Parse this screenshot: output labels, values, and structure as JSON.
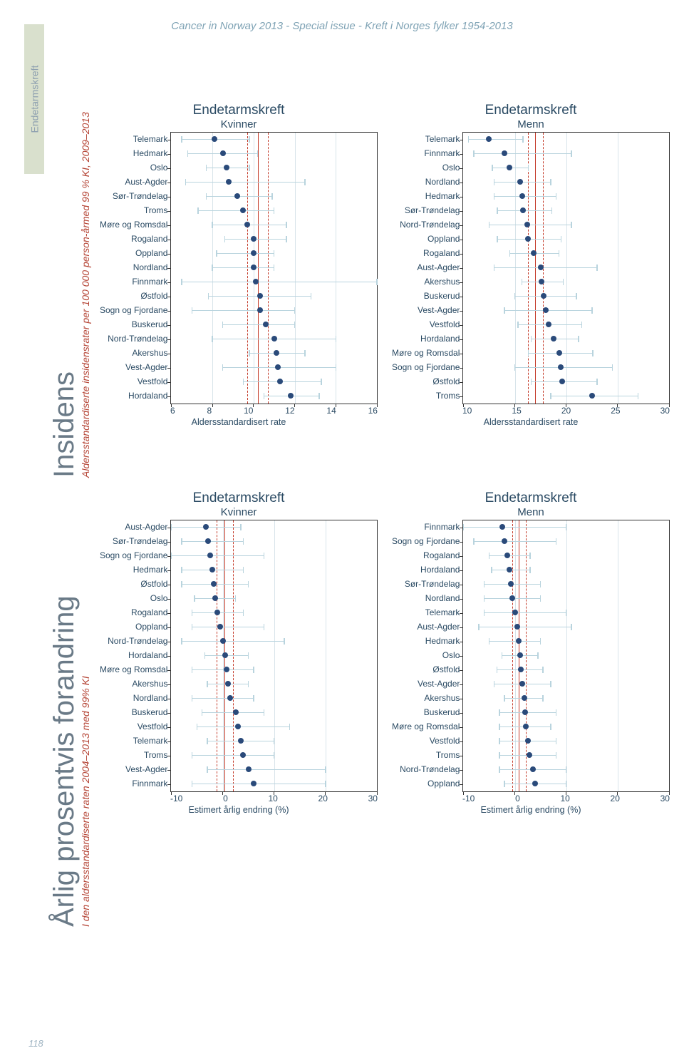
{
  "header": "Cancer in Norway 2013 - Special issue - Kreft i Norges fylker 1954-2013",
  "page_number": "118",
  "side_tag": "Endetarmskreft",
  "rot_top": {
    "big": "Insidens",
    "small": "Aldersstandardiserte insidensrater per 100 000 person-årmed 99 % KI, 2009–2013"
  },
  "rot_bottom": {
    "big": "Årlig prosentvis forandring",
    "small": "I den aldersstandardiserte raten  2004–2013 med 99% KI"
  },
  "colors": {
    "dot": "#2a4a7a",
    "ci": "#b9d4de",
    "ref": "#c43b2a",
    "grid": "#d8e4ea"
  },
  "charts": [
    {
      "title": "Endetarmskreft",
      "subtitle": "Kvinner",
      "xlabel": "Aldersstandardisert rate",
      "xmin": 6,
      "xmax": 16,
      "xticks": [
        6,
        8,
        10,
        12,
        14,
        16
      ],
      "ref_solid": 10.2,
      "ref_dash": [
        9.7,
        10.7
      ],
      "gridlines": [
        8,
        10,
        12,
        14
      ],
      "rows": [
        {
          "label": "Telemark",
          "est": 8.1,
          "lo": 6.5,
          "hi": 9.8
        },
        {
          "label": "Hedmark",
          "est": 8.5,
          "lo": 6.8,
          "hi": 10.2
        },
        {
          "label": "Oslo",
          "est": 8.7,
          "lo": 7.7,
          "hi": 9.8
        },
        {
          "label": "Aust-Agder",
          "est": 8.8,
          "lo": 6.7,
          "hi": 12.5
        },
        {
          "label": "Sør-Trøndelag",
          "est": 9.2,
          "lo": 7.7,
          "hi": 10.9
        },
        {
          "label": "Troms",
          "est": 9.5,
          "lo": 7.3,
          "hi": 11.0
        },
        {
          "label": "Møre og Romsdal",
          "est": 9.7,
          "lo": 8.0,
          "hi": 11.6
        },
        {
          "label": "Rogaland",
          "est": 10.0,
          "lo": 8.6,
          "hi": 11.6
        },
        {
          "label": "Oppland",
          "est": 10.0,
          "lo": 8.2,
          "hi": 11.0
        },
        {
          "label": "Nordland",
          "est": 10.0,
          "lo": 8.0,
          "hi": 11.0
        },
        {
          "label": "Finnmark",
          "est": 10.1,
          "lo": 6.5,
          "hi": 16.0
        },
        {
          "label": "Østfold",
          "est": 10.3,
          "lo": 7.8,
          "hi": 12.8
        },
        {
          "label": "Sogn og Fjordane",
          "est": 10.3,
          "lo": 7.0,
          "hi": 12.0
        },
        {
          "label": "Buskerud",
          "est": 10.6,
          "lo": 8.5,
          "hi": 12.0
        },
        {
          "label": "Nord-Trøndelag",
          "est": 11.0,
          "lo": 8.0,
          "hi": 14.0
        },
        {
          "label": "Akershus",
          "est": 11.1,
          "lo": 9.8,
          "hi": 12.5
        },
        {
          "label": "Vest-Agder",
          "est": 11.2,
          "lo": 8.5,
          "hi": 14.0
        },
        {
          "label": "Vestfold",
          "est": 11.3,
          "lo": 9.5,
          "hi": 13.3
        },
        {
          "label": "Hordaland",
          "est": 11.8,
          "lo": 10.5,
          "hi": 13.2
        }
      ]
    },
    {
      "title": "Endetarmskreft",
      "subtitle": "Menn",
      "xlabel": "Aldersstandardisert rate",
      "xmin": 10,
      "xmax": 30,
      "xticks": [
        10,
        15,
        20,
        25,
        30
      ],
      "ref_solid": 17.0,
      "ref_dash": [
        16.3,
        17.7
      ],
      "gridlines": [
        15,
        20,
        25
      ],
      "rows": [
        {
          "label": "Telemark",
          "est": 12.5,
          "lo": 10.5,
          "hi": 15.8
        },
        {
          "label": "Finnmark",
          "est": 14.0,
          "lo": 11.0,
          "hi": 20.5
        },
        {
          "label": "Oslo",
          "est": 14.5,
          "lo": 12.8,
          "hi": 16.3
        },
        {
          "label": "Nordland",
          "est": 15.5,
          "lo": 13.0,
          "hi": 18.5
        },
        {
          "label": "Hedmark",
          "est": 15.7,
          "lo": 13.0,
          "hi": 19.0
        },
        {
          "label": "Sør-Trøndelag",
          "est": 15.8,
          "lo": 13.3,
          "hi": 18.6
        },
        {
          "label": "Nord-Trøndelag",
          "est": 16.2,
          "lo": 12.5,
          "hi": 20.5
        },
        {
          "label": "Oppland",
          "est": 16.3,
          "lo": 13.3,
          "hi": 19.5
        },
        {
          "label": "Rogaland",
          "est": 16.8,
          "lo": 14.5,
          "hi": 19.3
        },
        {
          "label": "Aust-Agder",
          "est": 17.5,
          "lo": 13.0,
          "hi": 23.0
        },
        {
          "label": "Akershus",
          "est": 17.6,
          "lo": 15.7,
          "hi": 19.7
        },
        {
          "label": "Buskerud",
          "est": 17.8,
          "lo": 15.0,
          "hi": 21.0
        },
        {
          "label": "Vest-Agder",
          "est": 18.0,
          "lo": 14.0,
          "hi": 22.5
        },
        {
          "label": "Vestfold",
          "est": 18.3,
          "lo": 15.3,
          "hi": 21.5
        },
        {
          "label": "Hordaland",
          "est": 18.8,
          "lo": 16.6,
          "hi": 21.2
        },
        {
          "label": "Møre og Romsdal",
          "est": 19.3,
          "lo": 16.3,
          "hi": 22.6
        },
        {
          "label": "Sogn og Fjordane",
          "est": 19.5,
          "lo": 15.0,
          "hi": 24.5
        },
        {
          "label": "Østfold",
          "est": 19.6,
          "lo": 16.6,
          "hi": 23.0
        },
        {
          "label": "Troms",
          "est": 22.5,
          "lo": 18.5,
          "hi": 27.0
        }
      ]
    },
    {
      "title": "Endetarmskreft",
      "subtitle": "Kvinner",
      "xlabel": "Estimert årlig endring (%)",
      "xmin": -10,
      "xmax": 30,
      "xticks": [
        -10,
        0,
        10,
        20,
        30
      ],
      "ref_solid": 0.4,
      "ref_dash": [
        -1.2,
        2.0
      ],
      "gridlines": [
        0,
        10,
        20
      ],
      "rows": [
        {
          "label": "Aust-Agder",
          "est": -3.2,
          "lo": -10.0,
          "hi": 3.5
        },
        {
          "label": "Sør-Trøndelag",
          "est": -2.8,
          "lo": -8.0,
          "hi": 4.0
        },
        {
          "label": "Sogn og Fjordane",
          "est": -2.5,
          "lo": -10.0,
          "hi": 8.0
        },
        {
          "label": "Hedmark",
          "est": -2.0,
          "lo": -8.0,
          "hi": 4.0
        },
        {
          "label": "Østfold",
          "est": -1.8,
          "lo": -8.0,
          "hi": 5.0
        },
        {
          "label": "Oslo",
          "est": -1.5,
          "lo": -5.5,
          "hi": 2.5
        },
        {
          "label": "Rogaland",
          "est": -1.0,
          "lo": -6.0,
          "hi": 4.0
        },
        {
          "label": "Oppland",
          "est": -0.5,
          "lo": -6.0,
          "hi": 8.0
        },
        {
          "label": "Nord-Trøndelag",
          "est": 0.0,
          "lo": -8.0,
          "hi": 12.0
        },
        {
          "label": "Hordaland",
          "est": 0.5,
          "lo": -3.5,
          "hi": 5.0
        },
        {
          "label": "Møre og Romsdal",
          "est": 0.8,
          "lo": -6.0,
          "hi": 6.0
        },
        {
          "label": "Akershus",
          "est": 1.0,
          "lo": -3.0,
          "hi": 5.0
        },
        {
          "label": "Nordland",
          "est": 1.5,
          "lo": -6.0,
          "hi": 6.0
        },
        {
          "label": "Buskerud",
          "est": 2.5,
          "lo": -4.0,
          "hi": 8.0
        },
        {
          "label": "Vestfold",
          "est": 3.0,
          "lo": -5.0,
          "hi": 13.0
        },
        {
          "label": "Telemark",
          "est": 3.5,
          "lo": -3.0,
          "hi": 10.0
        },
        {
          "label": "Troms",
          "est": 4.0,
          "lo": -6.0,
          "hi": 10.0
        },
        {
          "label": "Vest-Agder",
          "est": 5.0,
          "lo": -3.0,
          "hi": 20.0
        },
        {
          "label": "Finnmark",
          "est": 6.0,
          "lo": -6.0,
          "hi": 20.0
        }
      ]
    },
    {
      "title": "Endetarmskreft",
      "subtitle": "Menn",
      "xlabel": "Estimert årlig endring (%)",
      "xmin": -10,
      "xmax": 30,
      "xticks": [
        -10,
        0,
        10,
        20,
        30
      ],
      "ref_solid": 0.8,
      "ref_dash": [
        -0.5,
        2.1
      ],
      "gridlines": [
        0,
        10,
        20
      ],
      "rows": [
        {
          "label": "Finnmark",
          "est": -2.5,
          "lo": -10.0,
          "hi": 10.0
        },
        {
          "label": "Sogn og Fjordane",
          "est": -2.0,
          "lo": -8.0,
          "hi": 8.0
        },
        {
          "label": "Rogaland",
          "est": -1.5,
          "lo": -5.0,
          "hi": 3.0
        },
        {
          "label": "Hordaland",
          "est": -1.0,
          "lo": -4.5,
          "hi": 3.0
        },
        {
          "label": "Sør-Trøndelag",
          "est": -0.8,
          "lo": -6.0,
          "hi": 5.0
        },
        {
          "label": "Nordland",
          "est": -0.5,
          "lo": -6.0,
          "hi": 5.0
        },
        {
          "label": "Telemark",
          "est": 0.0,
          "lo": -6.0,
          "hi": 10.0
        },
        {
          "label": "Aust-Agder",
          "est": 0.5,
          "lo": -7.0,
          "hi": 11.0
        },
        {
          "label": "Hedmark",
          "est": 0.8,
          "lo": -5.0,
          "hi": 5.0
        },
        {
          "label": "Oslo",
          "est": 1.0,
          "lo": -2.5,
          "hi": 4.5
        },
        {
          "label": "Østfold",
          "est": 1.2,
          "lo": -3.5,
          "hi": 5.5
        },
        {
          "label": "Vest-Agder",
          "est": 1.5,
          "lo": -4.0,
          "hi": 7.0
        },
        {
          "label": "Akershus",
          "est": 1.8,
          "lo": -2.0,
          "hi": 5.5
        },
        {
          "label": "Buskerud",
          "est": 2.0,
          "lo": -3.0,
          "hi": 8.0
        },
        {
          "label": "Møre og Romsdal",
          "est": 2.2,
          "lo": -3.0,
          "hi": 7.0
        },
        {
          "label": "Vestfold",
          "est": 2.5,
          "lo": -3.0,
          "hi": 8.0
        },
        {
          "label": "Troms",
          "est": 2.8,
          "lo": -3.0,
          "hi": 8.0
        },
        {
          "label": "Nord-Trøndelag",
          "est": 3.5,
          "lo": -3.0,
          "hi": 10.0
        },
        {
          "label": "Oppland",
          "est": 4.0,
          "lo": -2.0,
          "hi": 10.0
        }
      ]
    }
  ]
}
